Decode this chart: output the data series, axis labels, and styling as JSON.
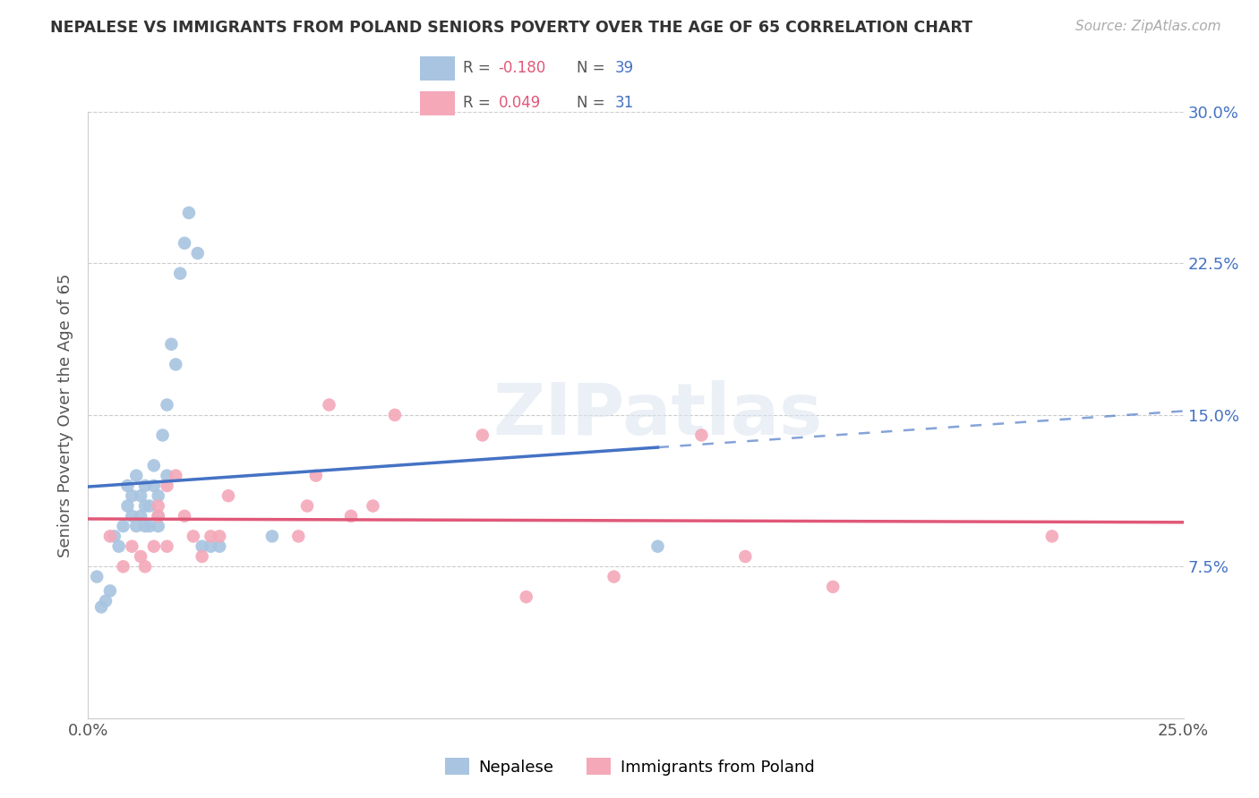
{
  "title": "NEPALESE VS IMMIGRANTS FROM POLAND SENIORS POVERTY OVER THE AGE OF 65 CORRELATION CHART",
  "source": "Source: ZipAtlas.com",
  "ylabel": "Seniors Poverty Over the Age of 65",
  "xlim": [
    0.0,
    0.25
  ],
  "ylim": [
    0.0,
    0.3
  ],
  "nepalese_R": -0.18,
  "nepalese_N": 39,
  "poland_R": 0.049,
  "poland_N": 31,
  "nepalese_color": "#a8c4e0",
  "poland_color": "#f4a8b8",
  "nepalese_line_color": "#4472c4",
  "poland_line_color": "#e05878",
  "nepalese_x": [
    0.002,
    0.003,
    0.004,
    0.005,
    0.006,
    0.007,
    0.008,
    0.009,
    0.009,
    0.01,
    0.01,
    0.011,
    0.011,
    0.012,
    0.012,
    0.013,
    0.013,
    0.013,
    0.014,
    0.014,
    0.015,
    0.015,
    0.016,
    0.016,
    0.016,
    0.017,
    0.018,
    0.018,
    0.019,
    0.02,
    0.021,
    0.022,
    0.023,
    0.025,
    0.026,
    0.028,
    0.03,
    0.042,
    0.13
  ],
  "nepalese_y": [
    0.07,
    0.055,
    0.058,
    0.063,
    0.09,
    0.085,
    0.095,
    0.105,
    0.115,
    0.1,
    0.11,
    0.095,
    0.12,
    0.1,
    0.11,
    0.095,
    0.105,
    0.115,
    0.095,
    0.105,
    0.115,
    0.125,
    0.095,
    0.1,
    0.11,
    0.14,
    0.12,
    0.155,
    0.185,
    0.175,
    0.22,
    0.235,
    0.25,
    0.23,
    0.085,
    0.085,
    0.085,
    0.09,
    0.085
  ],
  "poland_x": [
    0.005,
    0.008,
    0.01,
    0.012,
    0.013,
    0.015,
    0.016,
    0.016,
    0.018,
    0.018,
    0.02,
    0.022,
    0.024,
    0.026,
    0.028,
    0.03,
    0.032,
    0.048,
    0.05,
    0.052,
    0.055,
    0.06,
    0.065,
    0.07,
    0.09,
    0.1,
    0.12,
    0.14,
    0.15,
    0.17,
    0.22
  ],
  "poland_y": [
    0.09,
    0.075,
    0.085,
    0.08,
    0.075,
    0.085,
    0.1,
    0.105,
    0.085,
    0.115,
    0.12,
    0.1,
    0.09,
    0.08,
    0.09,
    0.09,
    0.11,
    0.09,
    0.105,
    0.12,
    0.155,
    0.1,
    0.105,
    0.15,
    0.14,
    0.06,
    0.07,
    0.14,
    0.08,
    0.065,
    0.09
  ]
}
